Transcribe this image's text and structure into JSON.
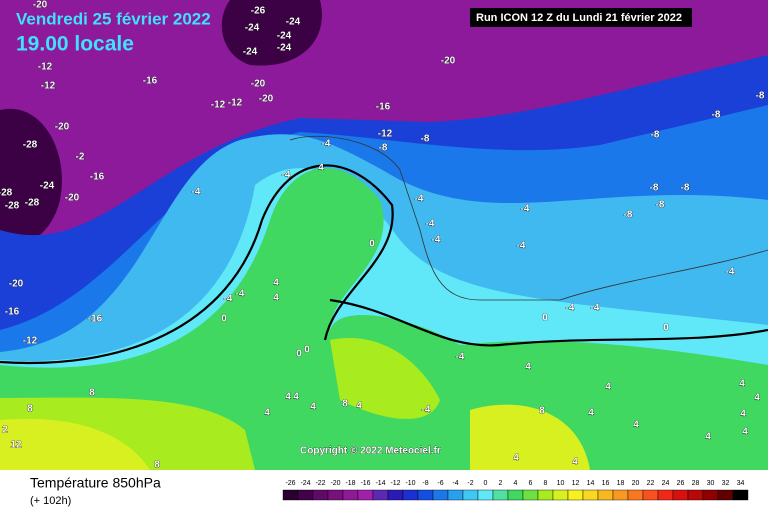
{
  "header": {
    "date": "Vendredi 25 février 2022",
    "time": "19.00 locale",
    "run": "Run ICON 12 Z du Lundi 21 février 2022"
  },
  "copyright": "Copyright © 2022 Meteociel.fr",
  "footer": {
    "title": "Température 850hPa",
    "subtitle": "(+ 102h)"
  },
  "scale": {
    "values": [
      -26,
      -24,
      -22,
      -20,
      -18,
      -16,
      -14,
      -12,
      -10,
      -8,
      -6,
      -4,
      -2,
      0,
      2,
      4,
      6,
      8,
      10,
      12,
      14,
      16,
      18,
      20,
      22,
      24,
      26,
      28,
      30,
      32,
      34
    ],
    "colors": [
      "#2a0030",
      "#44004c",
      "#5e0a68",
      "#78107e",
      "#8e1a96",
      "#a020a8",
      "#5a2ab4",
      "#2a1ab8",
      "#1a30d0",
      "#1450e0",
      "#1a78ea",
      "#28a0f0",
      "#40c8f0",
      "#60e8f8",
      "#50e0a0",
      "#40d860",
      "#70e040",
      "#a8ec20",
      "#d8f020",
      "#f8f020",
      "#f8d820",
      "#f8b820",
      "#f89820",
      "#f87820",
      "#f85020",
      "#f02818",
      "#d81010",
      "#b80808",
      "#900000",
      "#600000",
      "#000000"
    ]
  },
  "map_labels": [
    -20,
    -26,
    -24,
    -24,
    -24,
    -24,
    -24,
    -20,
    -12,
    -12,
    -16,
    -20,
    -20,
    -12,
    -12,
    -16,
    -12,
    -8,
    -8,
    -8,
    -8,
    -8,
    -20,
    -28,
    -2,
    -16,
    -24,
    -20,
    -28,
    -28,
    -28,
    -4,
    -4,
    -4,
    4,
    -4,
    -4,
    -4,
    -8,
    -8,
    -8,
    -8,
    -4,
    -4,
    0,
    -4,
    -20,
    -16,
    -16,
    -12,
    -4,
    -4,
    4,
    4,
    0,
    -4,
    -4,
    0,
    0,
    0,
    0,
    -4,
    8,
    4,
    4,
    4,
    8,
    4,
    4,
    -4,
    4,
    4,
    4,
    4,
    4,
    8,
    4,
    4,
    4,
    4,
    8,
    2,
    12,
    8,
    4,
    4
  ]
}
